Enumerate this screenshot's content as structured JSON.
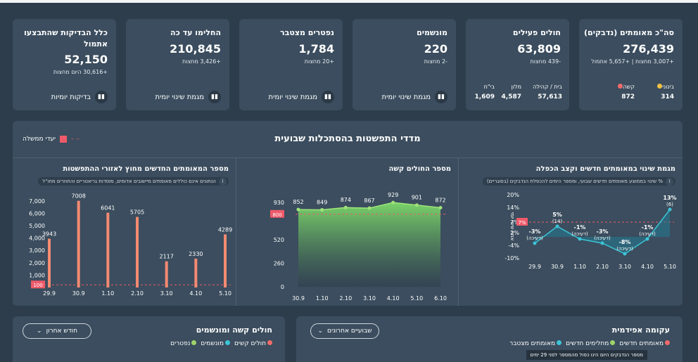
{
  "cards": [
    {
      "title": "סה\"כ מאומתים (נדבקים)",
      "value": "276,439",
      "sub": "+3,007 מחצות | +5,657 אתמול",
      "mini": [
        {
          "label": "בינוני",
          "value": "314",
          "color": "#f5c242"
        },
        {
          "label": "קשה",
          "value": "872",
          "color": "#f26b6b"
        }
      ]
    },
    {
      "title": "חולים פעילים",
      "value": "63,809",
      "sub": "-439 מחצות",
      "mini": [
        {
          "label": "בית / קהילה",
          "value": "57,613"
        },
        {
          "label": "מלון",
          "value": "4,587"
        },
        {
          "label": "בי\"ח",
          "value": "1,609"
        }
      ]
    },
    {
      "title": "מונשמים",
      "value": "220",
      "sub": "-2 מחצות",
      "link": "מגמת שינוי יומית"
    },
    {
      "title": "נפטרים מצטבר",
      "value": "1,784",
      "sub": "+20 מחצות",
      "link": "מגמת שינוי יומית"
    },
    {
      "title": "החלימו עד כה",
      "value": "210,845",
      "sub": "+3,426 מחצות",
      "link": "מגמת שינוי יומית"
    },
    {
      "title": "כלל הבדיקות שהתבצעו אתמול",
      "value": "52,150",
      "sub": "+30,616 היום מחצות",
      "link": "בדיקות יומיות"
    }
  ],
  "panel": {
    "title": "מדדי התפשטות בהסתכלות שבועית",
    "legend": "יעדי ממשלה",
    "chart1": {
      "title": "מגמת שינוי במאומתים חדשים וקצב הכפלה",
      "note": "% שינוי בממוצע מאומתים חדשים שבועי, ומספר הימים להכפלת הנדבקים (בסוגריים)",
      "ylabel": "אחוז שינוי יומי"
    },
    "chart2": {
      "title": "מספר החולים קשה"
    },
    "chart3": {
      "title": "מספר המאומתים החדשים מחוץ לאזורי ההתפשטות",
      "note": "הנתונים אינם כוללים מאומתים מיישובים אדומים, מוסדות גריאטריים והחוזרים מחו\"ל"
    }
  },
  "bottom": {
    "left": {
      "title": "חולים קשה ומונשמים",
      "select": "חודש אחרון",
      "legend": [
        {
          "label": "חולים קשים",
          "color": "#f26b6b"
        },
        {
          "label": "מונשמים",
          "color": "#3cc4d6"
        },
        {
          "label": "נפטרים",
          "color": "#9ed36a"
        }
      ]
    },
    "right": {
      "title": "עקומה אפידמית",
      "select": "שבועיים אחרונים",
      "legend": [
        {
          "label": "מאומתים חדשים",
          "color": "#f26b6b"
        },
        {
          "label": "מחלימים חדשים",
          "color": "#9ed36a"
        },
        {
          "label": "מאומתים מצטבר",
          "color": "#3cc4d6"
        }
      ],
      "tooltip": "מספר הנדבקים היום הינו כפול מהמספר לפני 29 ימים"
    }
  },
  "chart_data": [
    {
      "type": "line",
      "x": [
        "29.9",
        "30.9",
        "1.10",
        "2.10",
        "3.10",
        "4.10",
        "5.10"
      ],
      "values": [
        -3,
        5,
        -1,
        -3,
        -8,
        -1,
        13
      ],
      "labels": [
        "-3%",
        "5%",
        "-1%",
        "-3%",
        "-8%",
        "-1%",
        "13%"
      ],
      "sublabels": [
        "(דעיכה)",
        "(14)",
        "(דעיכה)",
        "(דעיכה)",
        "(דעיכה)",
        "(דעיכה)",
        "(6)"
      ],
      "yticks": [
        "20%",
        "14%",
        "7%",
        "2%",
        "-4%",
        "-10%"
      ],
      "ylim": [
        -10,
        20
      ],
      "target": 7
    },
    {
      "type": "area",
      "x": [
        "30.9",
        "1.10",
        "2.10",
        "3.10",
        "4.10",
        "5.10",
        "6.10"
      ],
      "values": [
        852,
        849,
        874,
        867,
        929,
        901,
        872
      ],
      "yticks": [
        0,
        260,
        520,
        800,
        930
      ],
      "ylim": [
        0,
        930
      ],
      "target": 800
    },
    {
      "type": "bar",
      "x": [
        "29.9",
        "30.9",
        "1.10",
        "2.10",
        "3.10",
        "4.10",
        "5.10"
      ],
      "values": [
        3943,
        7008,
        6041,
        5705,
        2117,
        2330,
        4289
      ],
      "yticks": [
        "7,000",
        "6,000",
        "5,000",
        "4,000",
        "3,000",
        "2,000",
        "1,000"
      ],
      "ylim": [
        0,
        7500
      ],
      "target": 100
    }
  ]
}
